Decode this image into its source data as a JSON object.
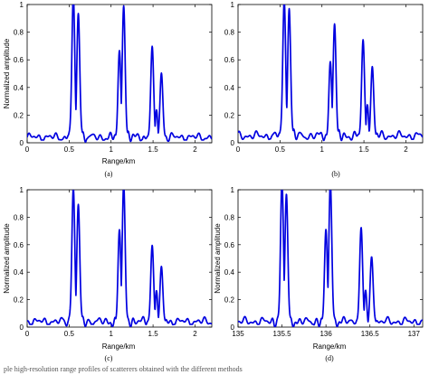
{
  "caption": "ple high‑resolution range profiles of scatterers obtained with the different methods",
  "chart_data": [
    {
      "type": "line",
      "panel_label": "(a)",
      "xlabel": "Range/km",
      "ylabel": "Normalized amplitude",
      "xlim": [
        0,
        2.2
      ],
      "ylim": [
        0,
        1
      ],
      "xticks": [
        "0",
        "0.5",
        "1",
        "1.5",
        "2"
      ],
      "xtick_values": [
        0,
        0.5,
        1,
        1.5,
        2
      ],
      "yticks": [
        "0",
        "0.2",
        "0.4",
        "0.6",
        "0.8",
        "1"
      ],
      "ytick_values": [
        0,
        0.2,
        0.4,
        0.6,
        0.8,
        1
      ],
      "color": "#0000e0",
      "baseline": 0.04,
      "peaks": [
        {
          "x": 0.55,
          "y": 1.0
        },
        {
          "x": 0.61,
          "y": 0.87
        },
        {
          "x": 1.1,
          "y": 0.61
        },
        {
          "x": 1.15,
          "y": 0.93
        },
        {
          "x": 1.49,
          "y": 0.65
        },
        {
          "x": 1.54,
          "y": 0.19
        },
        {
          "x": 1.6,
          "y": 0.46
        }
      ]
    },
    {
      "type": "line",
      "panel_label": "(b)",
      "xlabel": "",
      "ylabel": "",
      "xlim": [
        0,
        2.2
      ],
      "ylim": [
        0,
        1
      ],
      "xticks": [
        "0",
        "0.5",
        "1",
        "1.5",
        "2"
      ],
      "xtick_values": [
        0,
        0.5,
        1,
        1.5,
        2
      ],
      "yticks": [
        "0",
        "0.2",
        "0.4",
        "0.6",
        "0.8",
        "1"
      ],
      "ytick_values": [
        0,
        0.2,
        0.4,
        0.6,
        0.8,
        1
      ],
      "color": "#0000e0",
      "baseline": 0.05,
      "peaks": [
        {
          "x": 0.55,
          "y": 0.96
        },
        {
          "x": 0.61,
          "y": 0.9
        },
        {
          "x": 1.1,
          "y": 0.53
        },
        {
          "x": 1.15,
          "y": 0.8
        },
        {
          "x": 1.49,
          "y": 0.69
        },
        {
          "x": 1.54,
          "y": 0.22
        },
        {
          "x": 1.6,
          "y": 0.5
        }
      ]
    },
    {
      "type": "line",
      "panel_label": "(c)",
      "xlabel": "Range/km",
      "ylabel": "Normalized amplitude",
      "xlim": [
        0,
        2.2
      ],
      "ylim": [
        0,
        1
      ],
      "xticks": [
        "0",
        "0.5",
        "1",
        "1.5",
        "2"
      ],
      "xtick_values": [
        0,
        0.5,
        1,
        1.5,
        2
      ],
      "yticks": [
        "0",
        "0.2",
        "0.4",
        "0.6",
        "0.8",
        "1"
      ],
      "ytick_values": [
        0,
        0.2,
        0.4,
        0.6,
        0.8,
        1
      ],
      "color": "#0000e0",
      "baseline": 0.04,
      "peaks": [
        {
          "x": 0.55,
          "y": 0.95
        },
        {
          "x": 0.61,
          "y": 0.83
        },
        {
          "x": 1.1,
          "y": 0.65
        },
        {
          "x": 1.15,
          "y": 0.98
        },
        {
          "x": 1.49,
          "y": 0.55
        },
        {
          "x": 1.54,
          "y": 0.22
        },
        {
          "x": 1.6,
          "y": 0.4
        }
      ]
    },
    {
      "type": "line",
      "panel_label": "(d)",
      "xlabel": "Range/km",
      "ylabel": "Normalized amplitude",
      "xlim": [
        135,
        137.1
      ],
      "ylim": [
        0,
        1
      ],
      "xticks": [
        "135",
        "135.5",
        "136",
        "136.5",
        "137"
      ],
      "xtick_values": [
        135,
        135.5,
        136,
        136.5,
        137
      ],
      "yticks": [
        "0",
        "0.2",
        "0.4",
        "0.6",
        "0.8",
        "1"
      ],
      "ytick_values": [
        0,
        0.2,
        0.4,
        0.6,
        0.8,
        1
      ],
      "color": "#0000e0",
      "baseline": 0.04,
      "peaks": [
        {
          "x": 135.5,
          "y": 1.0
        },
        {
          "x": 135.55,
          "y": 0.9
        },
        {
          "x": 136.0,
          "y": 0.65
        },
        {
          "x": 136.05,
          "y": 0.99
        },
        {
          "x": 136.4,
          "y": 0.68
        },
        {
          "x": 136.45,
          "y": 0.23
        },
        {
          "x": 136.52,
          "y": 0.48
        }
      ]
    }
  ]
}
